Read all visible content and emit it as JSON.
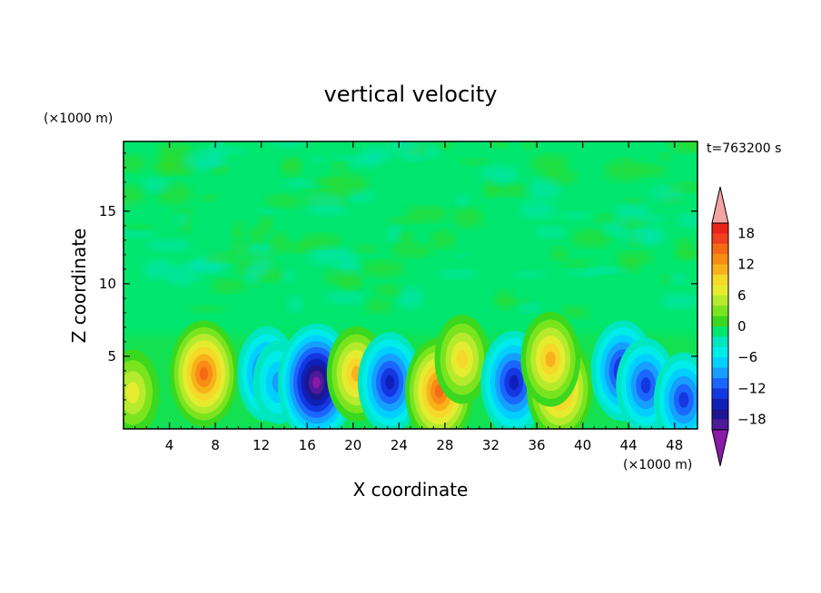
{
  "chart_data": {
    "type": "heatmap",
    "title": "vertical velocity",
    "xlabel": "X coordinate",
    "ylabel": "Z coordinate",
    "x_unit": "(×1000 m)",
    "y_unit": "(×1000 m)",
    "time_label": "t=763200 s",
    "xlim": [
      0,
      50
    ],
    "ylim": [
      0,
      19.8
    ],
    "x_ticks": [
      4,
      8,
      12,
      16,
      20,
      24,
      28,
      32,
      36,
      40,
      44,
      48
    ],
    "x_tick_labels": [
      "4",
      "8",
      "12",
      "16",
      "20",
      "24",
      "28",
      "32",
      "36",
      "40",
      "44",
      "48"
    ],
    "y_ticks": [
      5,
      10,
      15
    ],
    "y_tick_labels": [
      "5",
      "10",
      "15"
    ],
    "background_level": 0,
    "features": [
      {
        "x": 0.8,
        "z": 2.5,
        "value": 6
      },
      {
        "x": 7.0,
        "z": 3.8,
        "value": 13
      },
      {
        "x": 12.5,
        "z": 3.8,
        "value": -9
      },
      {
        "x": 13.5,
        "z": 3.2,
        "value": -5
      },
      {
        "x": 16.8,
        "z": 3.2,
        "value": -17
      },
      {
        "x": 20.3,
        "z": 3.8,
        "value": 9
      },
      {
        "x": 23.2,
        "z": 3.2,
        "value": -11
      },
      {
        "x": 27.5,
        "z": 2.6,
        "value": 13
      },
      {
        "x": 29.5,
        "z": 4.8,
        "value": 7
      },
      {
        "x": 34.0,
        "z": 3.2,
        "value": -12
      },
      {
        "x": 38.0,
        "z": 2.8,
        "value": 12
      },
      {
        "x": 37.2,
        "z": 4.8,
        "value": 9
      },
      {
        "x": 43.5,
        "z": 4.0,
        "value": -11
      },
      {
        "x": 45.5,
        "z": 3.0,
        "value": -9
      },
      {
        "x": 48.8,
        "z": 2.0,
        "value": -9
      }
    ],
    "colorbar": {
      "ticks": [
        18,
        12,
        6,
        0,
        -6,
        -12,
        -18
      ],
      "tick_labels": [
        "18",
        "12",
        "6",
        "0",
        "−6",
        "−12",
        "−18"
      ],
      "levels": [
        21,
        19,
        17,
        15,
        13,
        11,
        9,
        7,
        5,
        3,
        1,
        -1,
        -3,
        -5,
        -7,
        -9,
        -11,
        -13,
        -15,
        -17,
        -19,
        -21
      ],
      "colors": [
        "#f4a3a3",
        "#e8231a",
        "#f0401e",
        "#f56a16",
        "#f98c14",
        "#f7b21a",
        "#f5d82a",
        "#e5ec2f",
        "#b6ea2d",
        "#7ae41f",
        "#3ad81e",
        "#00e66e",
        "#00e6c0",
        "#00ece8",
        "#00cfff",
        "#169fff",
        "#1b66ff",
        "#1437e0",
        "#0f20b8",
        "#1e1690",
        "#4d1a9a",
        "#8a1aa8"
      ]
    }
  }
}
